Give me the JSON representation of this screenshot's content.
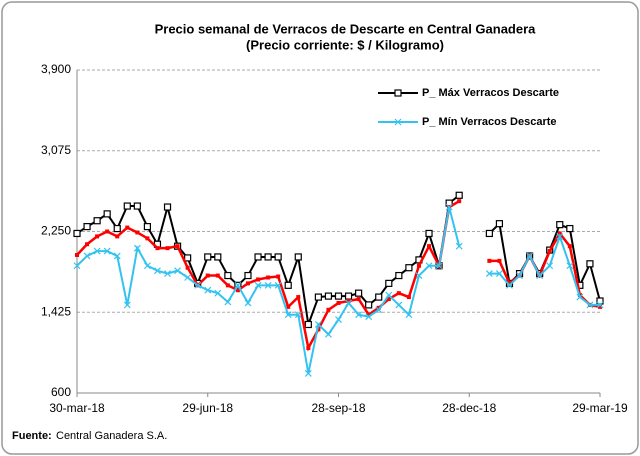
{
  "chart_data": {
    "type": "line",
    "title": "Precio semanal de Verracos de Descarte en Central Ganadera",
    "subtitle": "(Precio corriente: $ / Kilogramo)",
    "source_label": "Fuente:",
    "source": "Central Ganadera S.A.",
    "categories": [
      "30-mar-18",
      null,
      null,
      null,
      null,
      null,
      null,
      null,
      null,
      null,
      null,
      null,
      null,
      "29-jun-18",
      null,
      null,
      null,
      null,
      null,
      null,
      null,
      null,
      null,
      null,
      null,
      null,
      "28-sep-18",
      null,
      null,
      null,
      null,
      null,
      null,
      null,
      null,
      null,
      null,
      null,
      null,
      "28-dec-18",
      null,
      null,
      null,
      null,
      null,
      null,
      null,
      null,
      null,
      null,
      null,
      null,
      "29-mar-19"
    ],
    "series": [
      {
        "name": "P_ Máx Verracos Descarte",
        "color": "#000000",
        "marker": "square",
        "values": [
          2230,
          2300,
          2360,
          2430,
          2280,
          2510,
          2510,
          2300,
          2120,
          2500,
          2100,
          1980,
          1720,
          1990,
          1990,
          1800,
          1700,
          1800,
          1990,
          1990,
          1990,
          1700,
          1990,
          1300,
          1580,
          1590,
          1590,
          1590,
          1620,
          1500,
          1580,
          1720,
          1800,
          1880,
          1960,
          2230,
          1900,
          2540,
          2620,
          null,
          null,
          2230,
          2330,
          1720,
          1820,
          2000,
          1820,
          2060,
          2320,
          2280,
          1700,
          1920,
          1540
        ]
      },
      {
        "color": "#ff0000",
        "marker": "dot",
        "values": [
          2010,
          2120,
          2200,
          2250,
          2200,
          2290,
          2240,
          2180,
          2080,
          2080,
          2100,
          1880,
          1700,
          1800,
          1800,
          1700,
          1650,
          1720,
          1760,
          1780,
          1790,
          1480,
          1580,
          1060,
          1250,
          1450,
          1520,
          1540,
          1560,
          1400,
          1470,
          1560,
          1620,
          1580,
          1900,
          2100,
          1900,
          2500,
          2560,
          null,
          null,
          1950,
          1950,
          1720,
          1800,
          2000,
          1800,
          2050,
          2230,
          2100,
          1600,
          1500,
          1480
        ]
      },
      {
        "name": "P_ Mín Verracos Descarte",
        "color": "#33c3f0",
        "marker": "x",
        "values": [
          1900,
          2000,
          2050,
          2050,
          2000,
          1500,
          2080,
          1900,
          1850,
          1820,
          1850,
          1780,
          1700,
          1650,
          1620,
          1530,
          1700,
          1520,
          1700,
          1700,
          1700,
          1400,
          1400,
          800,
          1300,
          1200,
          1350,
          1520,
          1400,
          1380,
          1450,
          1600,
          1500,
          1400,
          1800,
          1900,
          1900,
          2500,
          2100,
          null,
          null,
          1820,
          1820,
          1700,
          1800,
          2000,
          1800,
          1900,
          2200,
          1900,
          1580,
          1500,
          1500
        ]
      }
    ],
    "ylim": [
      600,
      3900
    ],
    "yticks": [
      600,
      {
        "value": 1425,
        "label": "1,425"
      },
      {
        "value": 2250,
        "label": "2,250"
      },
      {
        "value": 3075,
        "label": "3,075"
      },
      {
        "value": 3900,
        "label": "3,900"
      }
    ],
    "grid": true,
    "legend": "upper right"
  }
}
